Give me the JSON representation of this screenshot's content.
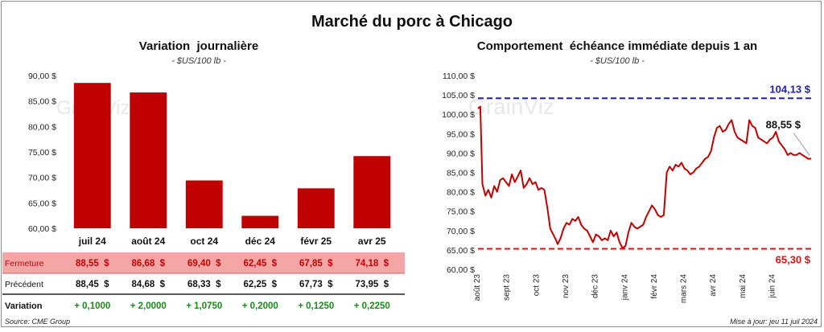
{
  "main_title": "Marché du porc à Chicago",
  "footer": {
    "source": "Source: CME Group",
    "updated": "Mise à jour: jeu 11 juil 2024"
  },
  "colors": {
    "bar": "#c00000",
    "line": "#c00000",
    "max_line": "#1f1fb4",
    "min_line": "#e01010",
    "fermeture_bg": "#f4a6a6",
    "positive": "#1a8a1a"
  },
  "chart_data": [
    {
      "type": "bar",
      "title": "Variation  journalière",
      "subtitle": "- $US/100 lb -",
      "categories": [
        "juil 24",
        "août 24",
        "oct 24",
        "déc 24",
        "févr 25",
        "avr 25"
      ],
      "values": [
        88.55,
        86.68,
        69.4,
        62.45,
        67.85,
        74.18
      ],
      "ylim": [
        60,
        90
      ],
      "yticks": [
        "60,00 $",
        "65,00 $",
        "70,00 $",
        "75,00 $",
        "80,00 $",
        "85,00 $",
        "90,00 $"
      ],
      "table": {
        "rows": [
          {
            "label": "Fermeture",
            "cells": [
              "88,55  $",
              "86,68  $",
              "69,40  $",
              "62,45  $",
              "67,85  $",
              "74,18  $"
            ]
          },
          {
            "label": "Précédent",
            "cells": [
              "88,45  $",
              "84,68  $",
              "68,33  $",
              "62,25  $",
              "67,73  $",
              "73,95  $"
            ]
          },
          {
            "label": "Variation",
            "cells": [
              "+ 0,1000",
              "+ 2,0000",
              "+ 1,0750",
              "+ 0,2000",
              "+ 0,1250",
              "+ 0,2250"
            ]
          }
        ]
      }
    },
    {
      "type": "line",
      "title": "Comportement  échéance immédiate depuis 1 an",
      "subtitle": "- $US/100 lb -",
      "ylim": [
        60,
        110
      ],
      "yticks": [
        "60,00 $",
        "65,00 $",
        "70,00 $",
        "75,00 $",
        "80,00 $",
        "85,00 $",
        "90,00 $",
        "95,00 $",
        "100,00 $",
        "105,00 $",
        "110,00 $"
      ],
      "xticks": [
        "août 23",
        "sept 23",
        "oct 23",
        "nov 23",
        "déc 23",
        "janv 24",
        "févr 24",
        "mars 24",
        "avr 24",
        "mai 24",
        "juin 24"
      ],
      "x_range": [
        0,
        11.35
      ],
      "max": {
        "value": 104.13,
        "label": "104,13 $"
      },
      "min": {
        "value": 65.3,
        "label": "65,30 $"
      },
      "last": {
        "value": 88.55,
        "label": "88,55 $"
      },
      "series": [
        {
          "x": [
            0,
            0.08,
            0.15,
            0.25,
            0.35,
            0.45,
            0.55,
            0.65,
            0.75,
            0.85,
            0.95,
            1.05,
            1.15,
            1.25,
            1.35,
            1.45,
            1.55,
            1.65,
            1.75,
            1.85,
            1.95,
            2.05,
            2.15,
            2.25,
            2.35,
            2.45,
            2.55,
            2.65,
            2.7,
            2.8,
            2.9,
            3.0,
            3.1,
            3.2,
            3.3,
            3.4,
            3.5,
            3.6,
            3.7,
            3.8,
            3.9,
            4.0,
            4.1,
            4.2,
            4.3,
            4.4,
            4.5,
            4.6,
            4.7,
            4.8,
            4.9,
            5.0,
            5.1,
            5.2,
            5.3,
            5.4,
            5.5,
            5.6,
            5.7,
            5.8,
            5.9,
            6.0,
            6.1,
            6.2,
            6.3,
            6.4,
            6.5,
            6.6,
            6.7,
            6.8,
            6.9,
            7.0,
            7.1,
            7.2,
            7.3,
            7.4,
            7.5,
            7.6,
            7.7,
            7.8,
            7.9,
            8.0,
            8.1,
            8.2,
            8.3,
            8.4,
            8.5,
            8.6,
            8.7,
            8.8,
            8.9,
            9.0,
            9.1,
            9.2,
            9.3,
            9.4,
            9.5,
            9.6,
            9.7,
            9.8,
            9.9,
            10.0,
            10.1,
            10.2,
            10.3,
            10.4,
            10.5,
            10.6,
            10.7,
            10.8,
            10.9,
            11.0,
            11.1,
            11.2,
            11.3
          ],
          "y": [
            101.5,
            102.0,
            82.0,
            79.0,
            80.5,
            78.5,
            81.5,
            80.0,
            83.0,
            83.5,
            82.5,
            81.5,
            84.5,
            82.5,
            84.0,
            85.5,
            81.0,
            82.0,
            83.5,
            82.0,
            82.5,
            80.5,
            81.0,
            80.5,
            76.0,
            70.5,
            69.0,
            67.5,
            66.5,
            68.0,
            70.5,
            72.0,
            71.5,
            73.0,
            72.5,
            73.5,
            71.5,
            70.5,
            70.0,
            68.5,
            67.0,
            69.0,
            68.5,
            67.5,
            68.0,
            67.5,
            70.0,
            68.5,
            69.5,
            67.0,
            65.5,
            66.0,
            69.5,
            72.0,
            71.0,
            70.5,
            71.0,
            71.5,
            73.5,
            75.0,
            76.5,
            75.5,
            74.0,
            73.5,
            74.0,
            85.0,
            86.5,
            85.5,
            87.0,
            86.5,
            87.5,
            86.0,
            85.5,
            84.5,
            85.0,
            86.0,
            86.5,
            87.5,
            88.5,
            89.0,
            90.5,
            94.0,
            96.5,
            97.0,
            95.5,
            96.0,
            97.5,
            98.5,
            95.5,
            94.0,
            93.5,
            93.0,
            92.5,
            98.5,
            97.0,
            96.5,
            94.0,
            93.5,
            93.0,
            92.5,
            93.5,
            94.0,
            95.5,
            93.0,
            92.0,
            91.0,
            89.5,
            90.0,
            89.5,
            89.5,
            90.0,
            89.5,
            89.0,
            88.5,
            88.55
          ]
        }
      ]
    }
  ]
}
